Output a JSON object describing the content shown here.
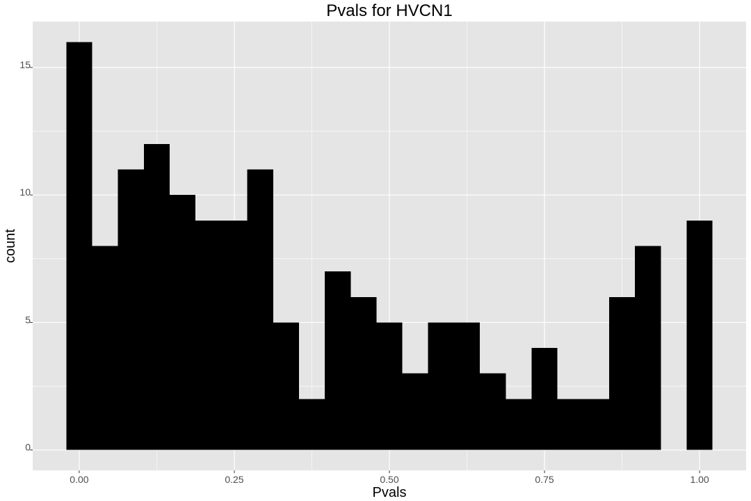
{
  "chart_data": {
    "type": "bar",
    "title": "Pvals for HVCN1",
    "xlabel": "Pvals",
    "ylabel": "count",
    "bin_width": 0.0417,
    "bin_centers": [
      0.0,
      0.0417,
      0.0833,
      0.125,
      0.1667,
      0.2083,
      0.25,
      0.2917,
      0.3333,
      0.375,
      0.4167,
      0.4583,
      0.5,
      0.5417,
      0.5833,
      0.625,
      0.6667,
      0.7083,
      0.75,
      0.7917,
      0.8333,
      0.875,
      0.9167,
      0.9583,
      1.0
    ],
    "values": [
      16,
      8,
      11,
      12,
      10,
      9,
      9,
      11,
      5,
      2,
      7,
      6,
      5,
      3,
      5,
      5,
      3,
      2,
      4,
      2,
      2,
      6,
      8,
      0,
      9
    ],
    "xlim": [
      -0.075,
      1.075
    ],
    "ylim": [
      -0.8,
      16.8
    ],
    "x_ticks": [
      0,
      0.25,
      0.5,
      0.75,
      1.0
    ],
    "x_tick_labels": [
      "0.00",
      "0.25",
      "0.50",
      "0.75",
      "1.00"
    ],
    "y_ticks": [
      0,
      5,
      10,
      15
    ],
    "y_tick_labels": [
      "0",
      "5",
      "10",
      "15"
    ],
    "grid": true,
    "colors": {
      "panel": "#e5e5e5",
      "grid": "#ffffff",
      "bar": "#000000"
    }
  }
}
